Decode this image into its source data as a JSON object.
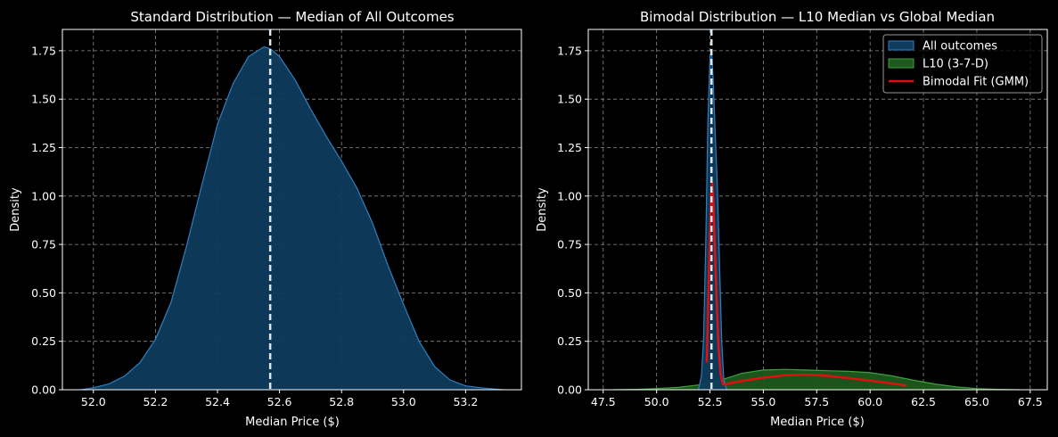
{
  "chart_data": [
    {
      "type": "area",
      "title": "Standard Distribution — Median of All Outcomes",
      "xlabel": "Median Price ($)",
      "ylabel": "Density",
      "xlim": [
        51.9,
        53.38
      ],
      "ylim": [
        0,
        1.86
      ],
      "xticks": [
        52.0,
        52.2,
        52.4,
        52.6,
        52.8,
        53.0,
        53.2
      ],
      "xtick_labels": [
        "52.0",
        "52.2",
        "52.4",
        "52.6",
        "52.8",
        "53.0",
        "53.2"
      ],
      "yticks": [
        0,
        0.25,
        0.5,
        0.75,
        1.0,
        1.25,
        1.5,
        1.75
      ],
      "ytick_labels": [
        "0.00",
        "0.25",
        "0.50",
        "0.75",
        "1.00",
        "1.25",
        "1.50",
        "1.75"
      ],
      "grid": true,
      "series": [
        {
          "name": "All outcomes",
          "fill": "#0f3b5c",
          "stroke": "#2f7fbf",
          "x": [
            51.96,
            52.0,
            52.05,
            52.1,
            52.15,
            52.2,
            52.25,
            52.3,
            52.35,
            52.4,
            52.45,
            52.5,
            52.55,
            52.57,
            52.6,
            52.65,
            52.7,
            52.75,
            52.8,
            52.85,
            52.9,
            52.95,
            53.0,
            53.05,
            53.1,
            53.15,
            53.2,
            53.25,
            53.32
          ],
          "y": [
            0.0,
            0.01,
            0.03,
            0.07,
            0.14,
            0.26,
            0.45,
            0.74,
            1.06,
            1.37,
            1.58,
            1.72,
            1.77,
            1.76,
            1.72,
            1.6,
            1.45,
            1.31,
            1.18,
            1.04,
            0.86,
            0.64,
            0.44,
            0.25,
            0.12,
            0.05,
            0.02,
            0.01,
            0.0
          ]
        }
      ],
      "vlines": [
        {
          "x": 52.57,
          "color": "#dde8f2",
          "label": "Median"
        }
      ]
    },
    {
      "type": "area",
      "title": "Bimodal Distribution — L10 Median vs Global Median",
      "xlabel": "Median Price ($)",
      "ylabel": "Density",
      "xlim": [
        46.8,
        68.3
      ],
      "ylim": [
        0,
        1.86
      ],
      "xticks": [
        47.5,
        50.0,
        52.5,
        55.0,
        57.5,
        60.0,
        62.5,
        65.0,
        67.5
      ],
      "xtick_labels": [
        "47.5",
        "50.0",
        "52.5",
        "55.0",
        "57.5",
        "60.0",
        "62.5",
        "65.0",
        "67.5"
      ],
      "yticks": [
        0,
        0.25,
        0.5,
        0.75,
        1.0,
        1.25,
        1.5,
        1.75
      ],
      "ytick_labels": [
        "0.00",
        "0.25",
        "0.50",
        "0.75",
        "1.00",
        "1.25",
        "1.50",
        "1.75"
      ],
      "grid": true,
      "series": [
        {
          "name": "L10 (3-7-D)",
          "kind": "area",
          "fill": "#1e5a1e",
          "stroke": "#3f9f3f",
          "x": [
            48.0,
            49.0,
            50.0,
            51.0,
            52.0,
            53.0,
            54.0,
            55.0,
            56.0,
            57.0,
            58.0,
            59.0,
            60.0,
            61.0,
            62.0,
            63.0,
            64.0,
            65.0,
            66.0,
            67.0
          ],
          "y": [
            0.0,
            0.002,
            0.006,
            0.012,
            0.025,
            0.05,
            0.085,
            0.102,
            0.105,
            0.102,
            0.098,
            0.095,
            0.088,
            0.072,
            0.05,
            0.03,
            0.015,
            0.006,
            0.002,
            0.0
          ]
        },
        {
          "name": "All outcomes",
          "kind": "area",
          "fill": "#0f3b5c",
          "stroke": "#2f7fbf",
          "x": [
            51.96,
            52.1,
            52.2,
            52.3,
            52.4,
            52.5,
            52.57,
            52.65,
            52.75,
            52.85,
            52.95,
            53.05,
            53.15,
            53.25,
            53.32
          ],
          "y": [
            0.0,
            0.07,
            0.26,
            0.74,
            1.37,
            1.72,
            1.76,
            1.6,
            1.31,
            1.04,
            0.64,
            0.25,
            0.05,
            0.01,
            0.0
          ]
        },
        {
          "name": "Bimodal Fit (GMM)",
          "kind": "line",
          "stroke": "#e01010",
          "x": [
            52.35,
            52.45,
            52.55,
            52.6,
            52.65,
            52.7,
            52.8,
            52.9,
            53.0,
            53.1,
            53.2,
            53.3,
            53.5,
            54.0,
            55.0,
            56.0,
            57.0,
            58.0,
            59.0,
            60.0,
            61.0,
            61.7
          ],
          "y": [
            0.14,
            0.6,
            1.0,
            1.07,
            0.98,
            0.82,
            0.5,
            0.22,
            0.08,
            0.03,
            0.025,
            0.03,
            0.035,
            0.045,
            0.062,
            0.075,
            0.078,
            0.072,
            0.06,
            0.047,
            0.032,
            0.022
          ]
        }
      ],
      "vlines": [
        {
          "x": 52.57,
          "color": "#dde8f2",
          "label": "Median"
        }
      ],
      "legend": {
        "position": "top-right",
        "entries": [
          {
            "label": "All outcomes",
            "swatch": "patch",
            "fill": "#0f3b5c",
            "stroke": "#2f7fbf"
          },
          {
            "label": "L10 (3-7-D)",
            "swatch": "patch",
            "fill": "#1e5a1e",
            "stroke": "#3f9f3f"
          },
          {
            "label": "Bimodal Fit (GMM)",
            "swatch": "line",
            "stroke": "#e01010"
          }
        ]
      }
    }
  ]
}
